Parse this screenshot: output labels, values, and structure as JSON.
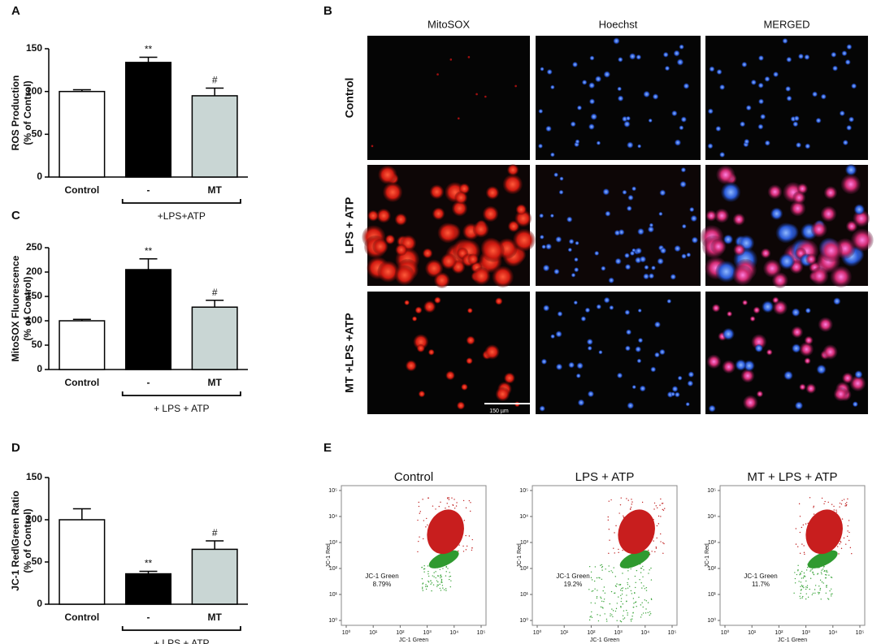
{
  "chart_data": [
    {
      "type": "bar",
      "label": "A",
      "ylabel": [
        "ROS Production",
        "(% of Control)"
      ],
      "categories": [
        "Control",
        "-",
        "MT"
      ],
      "values": [
        100,
        134,
        95
      ],
      "errors": [
        2,
        6,
        9
      ],
      "sig_labels": [
        null,
        "**",
        "#"
      ],
      "colors": [
        "#ffffff",
        "#000000",
        "#c9d6d4"
      ],
      "group_label": "+LPS+ATP",
      "ylim": [
        0,
        150
      ],
      "yticks": [
        0,
        50,
        100,
        150
      ]
    },
    {
      "type": "bar",
      "label": "C",
      "ylabel": [
        "MitoSOX Fluorescence",
        "(% of Control)"
      ],
      "categories": [
        "Control",
        "-",
        "MT"
      ],
      "values": [
        100,
        205,
        128
      ],
      "errors": [
        3,
        22,
        14
      ],
      "sig_labels": [
        null,
        "**",
        "#"
      ],
      "colors": [
        "#ffffff",
        "#000000",
        "#c9d6d4"
      ],
      "group_label": "+ LPS + ATP",
      "ylim": [
        0,
        250
      ],
      "yticks": [
        0,
        50,
        100,
        150,
        200,
        250
      ]
    },
    {
      "type": "bar",
      "label": "D",
      "ylabel": [
        "JC-1 Red\\Green Ratio",
        "(% of Control)"
      ],
      "categories": [
        "Control",
        "-",
        "MT"
      ],
      "values": [
        100,
        36,
        65
      ],
      "errors": [
        13,
        3,
        10
      ],
      "sig_labels": [
        null,
        "**",
        "#"
      ],
      "colors": [
        "#ffffff",
        "#000000",
        "#c9d6d4"
      ],
      "group_label": "+ LPS + ATP",
      "ylim": [
        0,
        150
      ],
      "yticks": [
        0,
        50,
        100,
        150
      ]
    }
  ],
  "micrographs": {
    "label": "B",
    "columns": [
      "MitoSOX",
      "Hoechst",
      "MERGED"
    ],
    "rows": [
      "Control",
      "LPS + ATP",
      "MT +LPS +ATP"
    ],
    "scale_bar": "150 µm"
  },
  "flow": {
    "label": "E",
    "x_label": "JC-1 Green",
    "y_label": "JC-1 Red",
    "log_scale": true,
    "xlim": [
      1,
      100000
    ],
    "ylim": [
      1,
      100000
    ],
    "xticks": [
      {
        "value": 1,
        "label": "10⁰"
      },
      {
        "value": 10,
        "label": "10¹"
      },
      {
        "value": 100,
        "label": "10²"
      },
      {
        "value": 1000,
        "label": "10³"
      },
      {
        "value": 10000,
        "label": "10⁴"
      },
      {
        "value": 100000,
        "label": "10⁵"
      }
    ],
    "yticks": [
      {
        "value": 1,
        "label": "10⁰"
      },
      {
        "value": 10,
        "label": "10¹"
      },
      {
        "value": 100,
        "label": "10²"
      },
      {
        "value": 1000,
        "label": "10³"
      },
      {
        "value": 10000,
        "label": "10⁴"
      },
      {
        "value": 100000,
        "label": "10⁵"
      }
    ],
    "plots": [
      {
        "title": "Control",
        "gate_name": "JC-1 Green",
        "gate_label": "8.79%"
      },
      {
        "title": "LPS + ATP",
        "gate_name": "JC-1 Green",
        "gate_label": "19.2%"
      },
      {
        "title": "MT + LPS + ATP",
        "gate_name": "JC-1 Green",
        "gate_label": "11.7%"
      }
    ]
  }
}
